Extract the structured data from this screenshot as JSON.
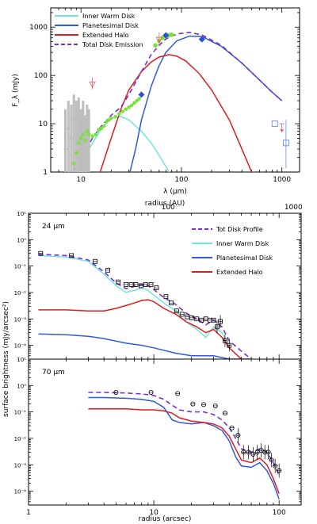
{
  "colors": {
    "inner_warm_disk": "#6fe7dc",
    "planetesimal_disk": "#2f5bd8",
    "extended_halo": "#e31a1c",
    "total": "#7a2fd1",
    "green_points": "#79e23d",
    "grey_points": "#bdbdbd",
    "diamond": "#2f4fd8",
    "upper_limit_red": "#e06666",
    "upper_limit_blue": "#6688ff"
  },
  "chart_data": [
    {
      "type": "line",
      "title": "",
      "xlabel": "λ (μm)",
      "ylabel": "F_λ (mJy)",
      "xscale": "log",
      "yscale": "log",
      "xlim": [
        5,
        1500
      ],
      "ylim": [
        1,
        2500
      ],
      "xticks": [
        "10",
        "100",
        "1000"
      ],
      "yticks": [
        "1",
        "10",
        "100",
        "1000"
      ],
      "legend": {
        "placement": "top-left",
        "entries": [
          {
            "label": "Inner Warm Disk",
            "key": "inner_warm_disk",
            "style": "solid"
          },
          {
            "label": "Planetesimal Disk",
            "key": "planetesimal_disk",
            "style": "solid"
          },
          {
            "label": "Extended Halo",
            "key": "extended_halo",
            "style": "solid"
          },
          {
            "label": "Total Disk Emission",
            "key": "total",
            "style": "dashed"
          }
        ]
      },
      "series": [
        {
          "key": "inner_warm_disk",
          "x": [
            9,
            12,
            16,
            20,
            25,
            30,
            40,
            50,
            60,
            70,
            80
          ],
          "y": [
            0.7,
            3,
            8,
            13,
            14,
            12,
            7,
            4,
            2.2,
            1.3,
            0.8
          ]
        },
        {
          "key": "planetesimal_disk",
          "x": [
            30,
            35,
            40,
            50,
            60,
            70,
            90,
            120,
            160,
            250,
            400,
            600,
            800,
            1000
          ],
          "y": [
            0.8,
            3,
            12,
            60,
            160,
            300,
            520,
            650,
            640,
            400,
            180,
            80,
            45,
            30
          ]
        },
        {
          "key": "extended_halo",
          "x": [
            15,
            20,
            25,
            30,
            40,
            50,
            60,
            75,
            90,
            110,
            150,
            200,
            300,
            400,
            500
          ],
          "y": [
            0.8,
            5,
            20,
            50,
            120,
            190,
            240,
            270,
            250,
            200,
            110,
            50,
            12,
            3,
            1
          ]
        },
        {
          "key": "total",
          "x": [
            8,
            10,
            13,
            16,
            20,
            25,
            30,
            40,
            50,
            60,
            70,
            90,
            120,
            160,
            250,
            400,
            600,
            800,
            1000
          ],
          "y": [
            0.8,
            2,
            5,
            9,
            15,
            22,
            40,
            120,
            270,
            420,
            570,
            720,
            780,
            690,
            420,
            180,
            80,
            45,
            30
          ]
        }
      ],
      "observations": {
        "green_spectrum": {
          "x": [
            8.5,
            9,
            9.5,
            10,
            10.5,
            11,
            11.5,
            12,
            13,
            14,
            15,
            16,
            17,
            18,
            19,
            20,
            22,
            24,
            26,
            28,
            30,
            32,
            34,
            36,
            38
          ],
          "y": [
            1.5,
            2.5,
            4,
            5,
            6,
            4.5,
            7,
            6,
            5.5,
            6,
            7.5,
            8,
            9,
            11,
            12,
            13,
            14,
            16,
            18,
            20,
            22,
            24,
            27,
            30,
            33
          ]
        },
        "grey_points": {
          "x": [
            7,
            7.5,
            8,
            8.5,
            9,
            9.5,
            10,
            10.5,
            11,
            11.5,
            12
          ],
          "y": [
            3,
            8,
            5,
            12,
            6,
            15,
            4,
            10,
            3,
            9,
            5
          ],
          "err_high": [
            20,
            30,
            25,
            40,
            30,
            35,
            20,
            30,
            15,
            25,
            20
          ]
        },
        "green_photometry": {
          "x": [
            55,
            60,
            65,
            70,
            75,
            80
          ],
          "y": [
            420,
            520,
            600,
            650,
            680,
            700
          ]
        },
        "blue_diamonds": {
          "x": [
            40,
            70,
            160
          ],
          "y": [
            40,
            680,
            560
          ]
        },
        "red_upper_limits": {
          "x": [
            13,
            60
          ],
          "y": [
            65,
            550
          ]
        },
        "blue_squares": {
          "x": [
            850,
            1100
          ],
          "y": [
            10,
            4
          ],
          "err_low": [
            10,
            1.2
          ],
          "err_high": [
            10,
            12
          ]
        },
        "red_arrow_limit": {
          "x": [
            1000
          ],
          "y": [
            10
          ]
        }
      }
    },
    {
      "type": "line",
      "title": "",
      "annotation": "24 μm",
      "xlabel": "",
      "top_xlabel": "radius (AU)",
      "ylabel": "surface brightness (mJy/arcsec²)",
      "xscale": "log",
      "yscale": "log",
      "xlim": [
        1,
        150
      ],
      "ylim": [
        3e-05,
        10
      ],
      "top_xticks": [
        "100",
        "1000"
      ],
      "yticks": [
        "10⁻⁴",
        "10⁻³",
        "10⁻²",
        "10⁻¹",
        "10⁰",
        "10¹"
      ],
      "legend": {
        "placement": "top-right",
        "entries": [
          {
            "label": "Tot Disk Profile",
            "key": "total",
            "style": "dashed"
          },
          {
            "label": "Inner Warm Disk",
            "key": "inner_warm_disk",
            "style": "solid"
          },
          {
            "label": "Planetesimal Disk",
            "key": "planetesimal_disk",
            "style": "solid"
          },
          {
            "label": "Extended Halo",
            "key": "extended_halo",
            "style": "solid"
          }
        ]
      },
      "series": [
        {
          "key": "inner_warm_disk",
          "x": [
            1.2,
            2,
            3,
            4,
            5,
            6,
            7,
            8,
            9,
            10,
            12,
            15,
            18,
            22,
            26,
            30,
            35,
            40,
            50,
            60
          ],
          "y": [
            0.25,
            0.22,
            0.15,
            0.05,
            0.018,
            0.01,
            0.012,
            0.015,
            0.012,
            0.008,
            0.004,
            0.002,
            0.0008,
            0.0004,
            0.0002,
            0.0005,
            0.0003,
            8e-05,
            3e-05,
            3e-05
          ]
        },
        {
          "key": "planetesimal_disk",
          "x": [
            1.2,
            2,
            3,
            4,
            6,
            8,
            10,
            15,
            20,
            30,
            40,
            50,
            60
          ],
          "y": [
            0.00027,
            0.00025,
            0.00022,
            0.00018,
            0.00012,
            0.0001,
            8e-05,
            5e-05,
            4e-05,
            4e-05,
            3e-05,
            3e-05,
            3e-05
          ]
        },
        {
          "key": "extended_halo",
          "x": [
            1.2,
            2,
            3,
            4,
            5,
            6,
            7,
            8,
            9,
            10,
            12,
            15,
            18,
            22,
            26,
            30,
            35,
            40,
            50
          ],
          "y": [
            0.0022,
            0.0022,
            0.002,
            0.002,
            0.0025,
            0.0032,
            0.004,
            0.005,
            0.0053,
            0.0045,
            0.0025,
            0.0015,
            0.0008,
            0.0005,
            0.0003,
            0.0004,
            0.0002,
            8e-05,
            3e-05
          ]
        },
        {
          "key": "total",
          "x": [
            1.2,
            2,
            3,
            4,
            5,
            6,
            7,
            8,
            9,
            10,
            12,
            15,
            18,
            22,
            26,
            30,
            35,
            40,
            50,
            60
          ],
          "y": [
            0.28,
            0.25,
            0.17,
            0.06,
            0.023,
            0.014,
            0.017,
            0.02,
            0.018,
            0.013,
            0.0065,
            0.0035,
            0.0017,
            0.001,
            0.0006,
            0.0009,
            0.0005,
            0.00015,
            6e-05,
            3e-05
          ]
        }
      ],
      "observations": {
        "squares": {
          "x": [
            1.25,
            2.2,
            3.4,
            4.3,
            5.2,
            6,
            6.6,
            7.2,
            7.9,
            8.6,
            9.5,
            10.5,
            12.5,
            13.8,
            15.2,
            16.8,
            18.5,
            20,
            22,
            24,
            26,
            28,
            30,
            32,
            34,
            37,
            40
          ],
          "y": [
            0.3,
            0.25,
            0.15,
            0.07,
            0.025,
            0.02,
            0.02,
            0.02,
            0.018,
            0.02,
            0.02,
            0.015,
            0.007,
            0.004,
            0.002,
            0.0015,
            0.0012,
            0.0011,
            0.001,
            0.0009,
            0.001,
            0.0009,
            0.0009,
            0.0005,
            0.0008,
            0.00015,
            0.0001
          ]
        }
      }
    },
    {
      "type": "line",
      "title": "",
      "annotation": "70 μm",
      "xlabel": "radius (arcsec)",
      "ylabel": "surface brightness (mJy/arcsec²)",
      "xscale": "log",
      "yscale": "log",
      "xlim": [
        1,
        150
      ],
      "ylim": [
        3e-05,
        10
      ],
      "xticks": [
        "1",
        "10",
        "100"
      ],
      "yticks": [
        "10⁻⁴",
        "10⁻³",
        "10⁻²",
        "10⁻¹",
        "10⁰",
        "10¹"
      ],
      "series": [
        {
          "key": "planetesimal_disk",
          "x": [
            3,
            4,
            6,
            8,
            10,
            12,
            14,
            16,
            20,
            25,
            30,
            35,
            40,
            45,
            50,
            60,
            70,
            80,
            90,
            100
          ],
          "y": [
            0.35,
            0.35,
            0.33,
            0.3,
            0.25,
            0.15,
            0.05,
            0.04,
            0.035,
            0.04,
            0.03,
            0.02,
            0.008,
            0.002,
            0.0009,
            0.0008,
            0.0012,
            0.0006,
            0.0002,
            5e-05
          ]
        },
        {
          "key": "extended_halo",
          "x": [
            3,
            4,
            6,
            8,
            10,
            12,
            14,
            16,
            20,
            25,
            30,
            35,
            40,
            45,
            50,
            60,
            70,
            80,
            90,
            100
          ],
          "y": [
            0.13,
            0.13,
            0.13,
            0.12,
            0.12,
            0.11,
            0.09,
            0.06,
            0.045,
            0.04,
            0.035,
            0.025,
            0.012,
            0.004,
            0.0015,
            0.0012,
            0.0018,
            0.001,
            0.0003,
            8e-05
          ]
        },
        {
          "key": "total",
          "x": [
            3,
            4,
            6,
            8,
            10,
            12,
            14,
            16,
            20,
            25,
            30,
            35,
            40,
            45,
            50,
            60,
            70,
            80,
            90,
            100
          ],
          "y": [
            0.55,
            0.55,
            0.52,
            0.48,
            0.42,
            0.3,
            0.18,
            0.12,
            0.1,
            0.1,
            0.08,
            0.05,
            0.025,
            0.01,
            0.004,
            0.003,
            0.004,
            0.003,
            0.0012,
            0.0004
          ]
        }
      ],
      "observations": {
        "circles": {
          "x": [
            5,
            9.5,
            15.5,
            20.5,
            25,
            31,
            37,
            42,
            47,
            52,
            57,
            62,
            67,
            72,
            77,
            82,
            87,
            93,
            100
          ],
          "y": [
            0.55,
            0.55,
            0.5,
            0.2,
            0.19,
            0.17,
            0.09,
            0.025,
            0.013,
            0.003,
            0.003,
            0.0025,
            0.003,
            0.0035,
            0.003,
            0.003,
            0.0015,
            0.0009,
            0.0006
          ]
        }
      }
    }
  ]
}
